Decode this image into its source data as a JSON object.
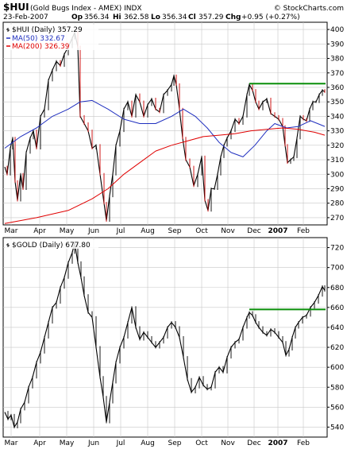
{
  "header": {
    "symbol": "$HUI",
    "description": "(Gold Bugs Index - AMEX) INDX",
    "brand": "© StockCharts.com",
    "date": "23-Feb-2007",
    "ohlc": {
      "op_label": "Op",
      "op": "356.34",
      "hi_label": "Hi",
      "hi": "362.58",
      "lo_label": "Lo",
      "lo": "356.34",
      "cl_label": "Cl",
      "cl": "357.29",
      "chg_label": "Chg",
      "chg": "+0.95 (+0.27%)"
    }
  },
  "colors": {
    "price": "#000000",
    "down_bar": "#cc0000",
    "ma50": "#1f2fbf",
    "ma200": "#e00000",
    "level": "#0a8f0a",
    "grid": "#c8c8c8"
  },
  "months": [
    "Mar",
    "Apr",
    "May",
    "Jun",
    "Jul",
    "Aug",
    "Sep",
    "Oct",
    "Nov",
    "Dec",
    "2007",
    "Feb"
  ],
  "chart_data": [
    {
      "type": "line",
      "legend_title": "$HUI (Daily) 357.29",
      "y_ticks": [
        270,
        280,
        290,
        300,
        310,
        320,
        330,
        340,
        350,
        360,
        370,
        380,
        390,
        400
      ],
      "ylim": [
        265,
        405
      ],
      "x_months": [
        "Mar",
        "Apr",
        "May",
        "Jun",
        "Jul",
        "Aug",
        "Sep",
        "Oct",
        "Nov",
        "Dec",
        "2007",
        "Feb"
      ],
      "series": [
        {
          "name": "$HUI (Daily) 357.29",
          "points": [
            [
              0,
              305
            ],
            [
              3,
              300
            ],
            [
              7,
              318
            ],
            [
              10,
              325
            ],
            [
              13,
              295
            ],
            [
              16,
              282
            ],
            [
              20,
              300
            ],
            [
              23,
              290
            ],
            [
              27,
              315
            ],
            [
              32,
              325
            ],
            [
              36,
              330
            ],
            [
              40,
              318
            ],
            [
              45,
              340
            ],
            [
              50,
              345
            ],
            [
              55,
              365
            ],
            [
              60,
              372
            ],
            [
              65,
              378
            ],
            [
              70,
              375
            ],
            [
              75,
              383
            ],
            [
              80,
              388
            ],
            [
              85,
              394
            ],
            [
              88,
              398
            ],
            [
              92,
              388
            ],
            [
              95,
              340
            ],
            [
              100,
              335
            ],
            [
              105,
              330
            ],
            [
              110,
              318
            ],
            [
              115,
              320
            ],
            [
              120,
              300
            ],
            [
              125,
              280
            ],
            [
              128,
              268
            ],
            [
              132,
              285
            ],
            [
              136,
              300
            ],
            [
              140,
              320
            ],
            [
              145,
              330
            ],
            [
              150,
              345
            ],
            [
              155,
              350
            ],
            [
              160,
              340
            ],
            [
              165,
              355
            ],
            [
              170,
              350
            ],
            [
              175,
              340
            ],
            [
              180,
              348
            ],
            [
              185,
              352
            ],
            [
              190,
              345
            ],
            [
              195,
              343
            ],
            [
              200,
              355
            ],
            [
              205,
              358
            ],
            [
              210,
              362
            ],
            [
              213,
              368
            ],
            [
              216,
              362
            ],
            [
              220,
              345
            ],
            [
              224,
              325
            ],
            [
              228,
              310
            ],
            [
              233,
              305
            ],
            [
              238,
              292
            ],
            [
              243,
              300
            ],
            [
              248,
              312
            ],
            [
              252,
              282
            ],
            [
              256,
              275
            ],
            [
              260,
              290
            ],
            [
              264,
              290
            ],
            [
              268,
              300
            ],
            [
              272,
              312
            ],
            [
              276,
              320
            ],
            [
              280,
              325
            ],
            [
              285,
              330
            ],
            [
              290,
              338
            ],
            [
              295,
              335
            ],
            [
              300,
              340
            ],
            [
              305,
              355
            ],
            [
              308,
              362
            ],
            [
              312,
              358
            ],
            [
              316,
              350
            ],
            [
              320,
              345
            ],
            [
              325,
              350
            ],
            [
              330,
              352
            ],
            [
              335,
              342
            ],
            [
              340,
              340
            ],
            [
              345,
              338
            ],
            [
              350,
              333
            ],
            [
              353,
              320
            ],
            [
              356,
              308
            ],
            [
              360,
              310
            ],
            [
              364,
              312
            ],
            [
              368,
              325
            ],
            [
              372,
              340
            ],
            [
              376,
              338
            ],
            [
              380,
              337
            ],
            [
              384,
              345
            ],
            [
              388,
              350
            ],
            [
              392,
              350
            ],
            [
              396,
              355
            ],
            [
              400,
              358
            ],
            [
              403,
              357
            ]
          ]
        },
        {
          "name": "MA(50) 332.67",
          "points": [
            [
              0,
              318
            ],
            [
              20,
              326
            ],
            [
              40,
              332
            ],
            [
              60,
              340
            ],
            [
              80,
              345
            ],
            [
              95,
              350
            ],
            [
              110,
              351
            ],
            [
              130,
              345
            ],
            [
              150,
              338
            ],
            [
              170,
              335
            ],
            [
              190,
              335
            ],
            [
              210,
              340
            ],
            [
              225,
              345
            ],
            [
              240,
              340
            ],
            [
              255,
              332
            ],
            [
              270,
              322
            ],
            [
              285,
              315
            ],
            [
              300,
              312
            ],
            [
              315,
              320
            ],
            [
              330,
              330
            ],
            [
              340,
              335
            ],
            [
              355,
              332
            ],
            [
              370,
              333
            ],
            [
              385,
              337
            ],
            [
              403,
              333
            ]
          ]
        },
        {
          "name": "MA(200) 326.39",
          "points": [
            [
              0,
              266
            ],
            [
              40,
              270
            ],
            [
              80,
              275
            ],
            [
              110,
              283
            ],
            [
              130,
              290
            ],
            [
              150,
              300
            ],
            [
              170,
              308
            ],
            [
              190,
              316
            ],
            [
              210,
              320
            ],
            [
              230,
              323
            ],
            [
              250,
              326
            ],
            [
              270,
              327
            ],
            [
              290,
              328
            ],
            [
              310,
              330
            ],
            [
              330,
              331
            ],
            [
              350,
              332
            ],
            [
              370,
              331
            ],
            [
              390,
              329
            ],
            [
              403,
              327
            ]
          ]
        }
      ],
      "reference_line": {
        "value": 362.58,
        "x_start_month": "Dec"
      }
    },
    {
      "type": "line",
      "legend_title": "$GOLD (Daily) 677.80",
      "y_ticks": [
        540,
        560,
        580,
        600,
        620,
        640,
        660,
        680,
        700,
        720
      ],
      "ylim": [
        530,
        730
      ],
      "x_months": [
        "Mar",
        "Apr",
        "May",
        "Jun",
        "Jul",
        "Aug",
        "Sep",
        "Oct",
        "Nov",
        "Dec",
        "2007",
        "Feb"
      ],
      "series": [
        {
          "name": "$GOLD (Daily) 677.80",
          "points": [
            [
              0,
              555
            ],
            [
              4,
              548
            ],
            [
              8,
              552
            ],
            [
              12,
              540
            ],
            [
              16,
              545
            ],
            [
              20,
              558
            ],
            [
              25,
              565
            ],
            [
              30,
              580
            ],
            [
              35,
              590
            ],
            [
              40,
              605
            ],
            [
              45,
              615
            ],
            [
              50,
              630
            ],
            [
              55,
              645
            ],
            [
              60,
              660
            ],
            [
              65,
              665
            ],
            [
              70,
              680
            ],
            [
              75,
              690
            ],
            [
              80,
              705
            ],
            [
              85,
              715
            ],
            [
              88,
              725
            ],
            [
              92,
              705
            ],
            [
              96,
              690
            ],
            [
              100,
              672
            ],
            [
              105,
              655
            ],
            [
              110,
              650
            ],
            [
              115,
              620
            ],
            [
              120,
              590
            ],
            [
              124,
              570
            ],
            [
              128,
              545
            ],
            [
              132,
              565
            ],
            [
              136,
              585
            ],
            [
              140,
              605
            ],
            [
              145,
              620
            ],
            [
              150,
              630
            ],
            [
              155,
              645
            ],
            [
              160,
              660
            ],
            [
              165,
              640
            ],
            [
              170,
              628
            ],
            [
              175,
              635
            ],
            [
              180,
              630
            ],
            [
              185,
              625
            ],
            [
              190,
              620
            ],
            [
              195,
              625
            ],
            [
              200,
              630
            ],
            [
              205,
              640
            ],
            [
              210,
              645
            ],
            [
              215,
              640
            ],
            [
              220,
              630
            ],
            [
              225,
              610
            ],
            [
              230,
              588
            ],
            [
              235,
              575
            ],
            [
              240,
              580
            ],
            [
              245,
              590
            ],
            [
              250,
              582
            ],
            [
              255,
              578
            ],
            [
              260,
              580
            ],
            [
              265,
              595
            ],
            [
              270,
              600
            ],
            [
              275,
              595
            ],
            [
              280,
              610
            ],
            [
              285,
              620
            ],
            [
              290,
              625
            ],
            [
              295,
              628
            ],
            [
              300,
              640
            ],
            [
              305,
              650
            ],
            [
              308,
              655
            ],
            [
              312,
              652
            ],
            [
              316,
              645
            ],
            [
              320,
              640
            ],
            [
              325,
              635
            ],
            [
              330,
              632
            ],
            [
              335,
              638
            ],
            [
              340,
              635
            ],
            [
              345,
              630
            ],
            [
              350,
              625
            ],
            [
              354,
              612
            ],
            [
              358,
              618
            ],
            [
              362,
              630
            ],
            [
              366,
              640
            ],
            [
              370,
              645
            ],
            [
              375,
              650
            ],
            [
              380,
              652
            ],
            [
              385,
              660
            ],
            [
              390,
              665
            ],
            [
              395,
              672
            ],
            [
              400,
              681
            ],
            [
              403,
              677
            ]
          ]
        }
      ],
      "reference_line": {
        "value": 658,
        "x_start_month": "Dec"
      }
    }
  ]
}
